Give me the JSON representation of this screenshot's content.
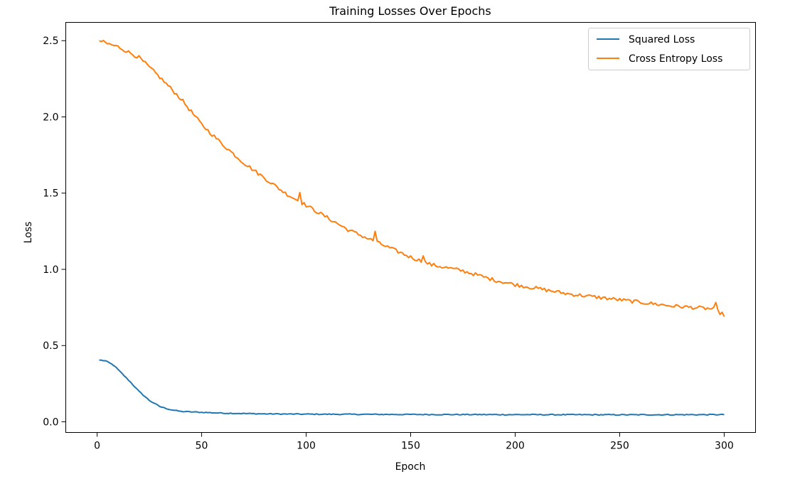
{
  "chart_data": {
    "type": "line",
    "title": "Training Losses Over Epochs",
    "xlabel": "Epoch",
    "ylabel": "Loss",
    "xlim": [
      -15,
      315
    ],
    "ylim": [
      -0.07,
      2.62
    ],
    "xticks": [
      0,
      50,
      100,
      150,
      200,
      250,
      300
    ],
    "yticks": [
      0.0,
      0.5,
      1.0,
      1.5,
      2.0,
      2.5
    ],
    "grid": false,
    "legend_position": "top-right",
    "x_start": 1,
    "x_end": 300,
    "series": [
      {
        "name": "Squared Loss",
        "color": "#1f77b4",
        "anchors": [
          [
            1,
            0.405
          ],
          [
            4,
            0.4
          ],
          [
            8,
            0.37
          ],
          [
            12,
            0.315
          ],
          [
            16,
            0.26
          ],
          [
            20,
            0.2
          ],
          [
            25,
            0.14
          ],
          [
            30,
            0.1
          ],
          [
            35,
            0.08
          ],
          [
            40,
            0.068
          ],
          [
            50,
            0.062
          ],
          [
            60,
            0.057
          ],
          [
            80,
            0.052
          ],
          [
            100,
            0.05
          ],
          [
            150,
            0.048
          ],
          [
            200,
            0.047
          ],
          [
            250,
            0.046
          ],
          [
            300,
            0.047
          ]
        ],
        "noise": 0.003
      },
      {
        "name": "Cross Entropy Loss",
        "color": "#ff7f0e",
        "anchors": [
          [
            1,
            2.5
          ],
          [
            5,
            2.48
          ],
          [
            10,
            2.46
          ],
          [
            20,
            2.39
          ],
          [
            30,
            2.26
          ],
          [
            40,
            2.12
          ],
          [
            50,
            1.95
          ],
          [
            60,
            1.82
          ],
          [
            70,
            1.7
          ],
          [
            80,
            1.6
          ],
          [
            90,
            1.5
          ],
          [
            100,
            1.42
          ],
          [
            110,
            1.34
          ],
          [
            120,
            1.26
          ],
          [
            130,
            1.2
          ],
          [
            140,
            1.14
          ],
          [
            150,
            1.08
          ],
          [
            160,
            1.03
          ],
          [
            175,
            0.99
          ],
          [
            190,
            0.93
          ],
          [
            200,
            0.9
          ],
          [
            225,
            0.84
          ],
          [
            250,
            0.8
          ],
          [
            275,
            0.76
          ],
          [
            295,
            0.74
          ],
          [
            300,
            0.7
          ]
        ],
        "noise": 0.012,
        "spikes": [
          [
            97,
            0.07
          ],
          [
            133,
            0.07
          ],
          [
            156,
            0.05
          ],
          [
            296,
            0.04
          ]
        ]
      }
    ]
  }
}
